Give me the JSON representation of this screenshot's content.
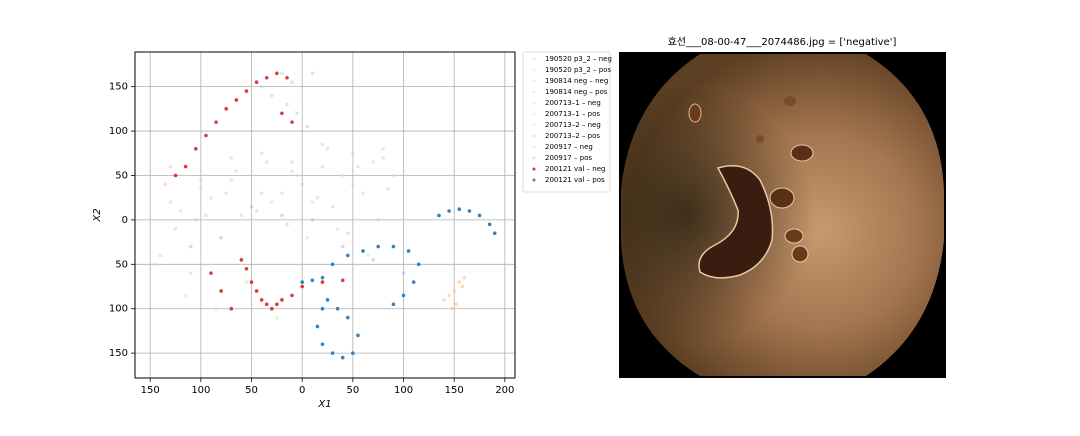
{
  "chart_data": {
    "type": "scatter",
    "xlabel": "X1",
    "ylabel": "X2",
    "xlim": [
      -165,
      210
    ],
    "ylim": [
      -178,
      189
    ],
    "xticks": [
      {
        "value": -150,
        "label": "150"
      },
      {
        "value": -100,
        "label": "100"
      },
      {
        "value": -50,
        "label": "50"
      },
      0,
      50,
      100,
      150,
      200
    ],
    "yticks": [
      150,
      100,
      50,
      0,
      {
        "value": -50,
        "label": "50"
      },
      {
        "value": -100,
        "label": "100"
      },
      {
        "value": -150,
        "label": "150"
      }
    ],
    "grid": true,
    "legend": "outside right",
    "series": [
      {
        "name": "190520 p3_2 – neg",
        "color": "#e8c9dc",
        "x": [
          -130,
          -100,
          -70,
          -40,
          -10,
          20,
          50,
          80
        ],
        "values": [
          20,
          35,
          45,
          30,
          55,
          60,
          40,
          70
        ]
      },
      {
        "name": "190520 p3_2 – pos",
        "color": "#c6dbef",
        "x": [
          -120,
          -90,
          -60,
          -30,
          0,
          30,
          60,
          90
        ],
        "values": [
          10,
          25,
          5,
          20,
          40,
          15,
          30,
          50
        ]
      },
      {
        "name": "190814 neg – neg",
        "color": "#d9e6a8",
        "x": [
          -140,
          -110,
          -80,
          -50,
          -20,
          10,
          40,
          70
        ],
        "values": [
          -40,
          -60,
          -80,
          -95,
          30,
          20,
          50,
          65
        ]
      },
      {
        "name": "190814 neg – pos",
        "color": "#9edae5",
        "x": [
          -40,
          -30,
          -20,
          -15,
          -10,
          -5,
          5,
          10
        ],
        "values": [
          150,
          140,
          165,
          130,
          155,
          120,
          105,
          165
        ]
      },
      {
        "name": "200713–1 – neg",
        "color": "#f7b6d2",
        "x": [
          -135,
          -105,
          -75,
          -45,
          -15,
          15,
          45,
          75
        ],
        "values": [
          40,
          0,
          30,
          10,
          -5,
          25,
          -15,
          0
        ]
      },
      {
        "name": "200713–1 – pos",
        "color": "#dbdb8d",
        "x": [
          -125,
          -95,
          -65,
          -35,
          -5,
          25,
          55,
          85
        ],
        "values": [
          -10,
          5,
          55,
          65,
          50,
          80,
          60,
          35
        ]
      },
      {
        "name": "200713–2 – neg",
        "color": "#c7e9c0",
        "x": [
          -145,
          -115,
          -85,
          -55,
          -25,
          5,
          35,
          65
        ],
        "values": [
          -50,
          -85,
          -100,
          -70,
          -110,
          -20,
          -10,
          -40
        ]
      },
      {
        "name": "200713–2 – pos",
        "color": "#ffbb78",
        "x": [
          140,
          145,
          150,
          155,
          160,
          148,
          152,
          158
        ],
        "values": [
          -90,
          -85,
          -80,
          -70,
          -65,
          -100,
          -95,
          -75
        ]
      },
      {
        "name": "200917 – neg",
        "color": "#e6d5a8",
        "x": [
          -130,
          -100,
          -70,
          -40,
          -10,
          20,
          50,
          80
        ],
        "values": [
          60,
          45,
          70,
          75,
          65,
          85,
          75,
          80
        ]
      },
      {
        "name": "200917 – pos",
        "color": "#c5b0d5",
        "x": [
          -110,
          -80,
          -50,
          -20,
          10,
          40,
          70,
          100
        ],
        "values": [
          -30,
          -20,
          15,
          5,
          0,
          -30,
          -45,
          -60
        ]
      },
      {
        "name": "200121 val – neg",
        "color": "#d62728",
        "x": [
          -125,
          -115,
          -105,
          -95,
          -85,
          -75,
          -65,
          -55,
          -45,
          -35,
          -25,
          -15,
          -20,
          -10,
          -60,
          -55,
          -50,
          -45,
          -40,
          -35,
          -30,
          -25,
          -20,
          -10,
          0,
          20,
          40,
          -80,
          -70,
          -90
        ],
        "values": [
          50,
          60,
          80,
          95,
          110,
          125,
          135,
          145,
          155,
          160,
          165,
          160,
          120,
          110,
          -45,
          -55,
          -70,
          -80,
          -90,
          -95,
          -100,
          -95,
          -90,
          -85,
          -75,
          -70,
          -68,
          -80,
          -100,
          -60
        ]
      },
      {
        "name": "200121 val – pos",
        "color": "#1f77b4",
        "x": [
          135,
          145,
          155,
          165,
          175,
          185,
          190,
          0,
          10,
          20,
          30,
          45,
          60,
          75,
          90,
          105,
          115,
          110,
          100,
          90,
          20,
          15,
          20,
          30,
          40,
          50,
          55,
          45,
          35,
          25
        ],
        "values": [
          5,
          10,
          12,
          10,
          5,
          -5,
          -15,
          -70,
          -68,
          -65,
          -50,
          -40,
          -35,
          -30,
          -30,
          -35,
          -50,
          -70,
          -85,
          -95,
          -100,
          -120,
          -140,
          -150,
          -155,
          -150,
          -130,
          -110,
          -100,
          -90
        ]
      }
    ]
  },
  "image": {
    "title": "효선___08-00-47___2074486.jpg = ['negative']"
  }
}
